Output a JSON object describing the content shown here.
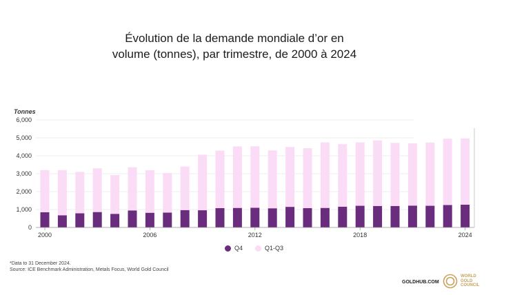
{
  "chart_data": {
    "type": "bar",
    "stacked": true,
    "title_lines": [
      "Évolution de la demande mondiale d’or en",
      "volume (tonnes), par trimestre, de 2000 à 2024"
    ],
    "ylabel": "Tonnes",
    "ylim": [
      0,
      6000
    ],
    "yticks": [
      "0",
      "1,000",
      "2,000",
      "3,000",
      "4,000",
      "5,000",
      "6,000"
    ],
    "xtick_labels": [
      "2000",
      "2006",
      "2012",
      "2018",
      "2024"
    ],
    "categories": [
      "2000",
      "2001",
      "2002",
      "2003",
      "2004",
      "2005",
      "2006",
      "2007",
      "2008",
      "2009",
      "2010",
      "2011",
      "2012",
      "2013",
      "2014",
      "2015",
      "2016",
      "2017",
      "2018",
      "2019",
      "2020",
      "2021",
      "2022",
      "2023",
      "2024"
    ],
    "series": [
      {
        "name": "Q4",
        "color": "#6a2d7e",
        "values": [
          850,
          680,
          790,
          860,
          760,
          950,
          820,
          830,
          970,
          960,
          1080,
          1090,
          1100,
          1070,
          1150,
          1080,
          1090,
          1160,
          1210,
          1200,
          1200,
          1220,
          1210,
          1250,
          1270
        ]
      },
      {
        "name": "Q1-Q3",
        "color": "#fbdcf6",
        "values": [
          2350,
          2520,
          2310,
          2440,
          2160,
          2410,
          2370,
          2210,
          2430,
          3100,
          3210,
          3430,
          3430,
          3230,
          3340,
          3340,
          3660,
          3490,
          3540,
          3660,
          3520,
          3470,
          3530,
          3700,
          3700
        ]
      }
    ],
    "grid": true,
    "legend_position": "bottom-center"
  },
  "footnotes": [
    "*Data to 31 December 2024.",
    "Source: ICE Benchmark Administration, Metals Focus, World Gold Council"
  ],
  "branding": {
    "goldhub": "GOLDHUB.COM",
    "wgc_lines": [
      "WORLD",
      "GOLD",
      "COUNCIL"
    ],
    "wgc_color": "#c7a25a"
  }
}
